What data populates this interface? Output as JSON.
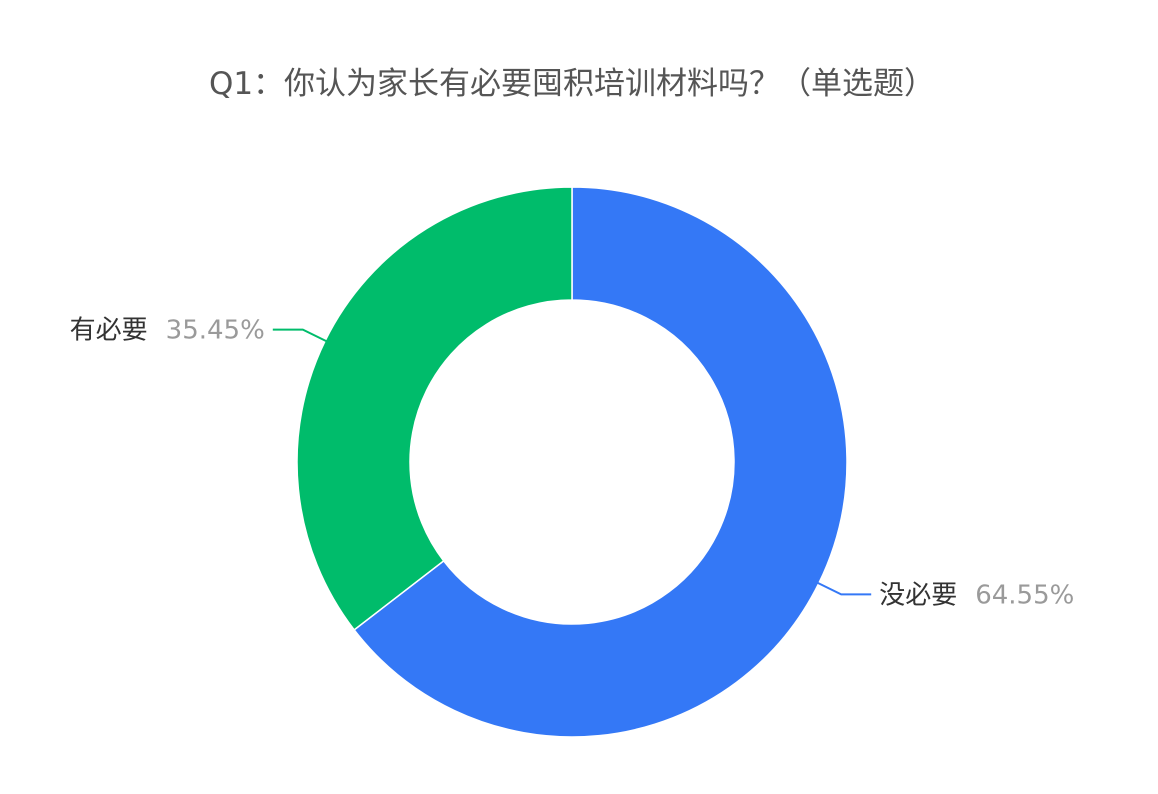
{
  "chart_data": {
    "type": "pie",
    "title": "Q1：你认为家长有必要囤积培训材料吗？（单选题）",
    "slices": [
      {
        "label": "没必要",
        "value": 64.55,
        "value_label": "64.55%",
        "color": "#3478f6"
      },
      {
        "label": "有必要",
        "value": 35.45,
        "value_label": "35.45%",
        "color": "#00bc6b"
      }
    ],
    "start_angle": "12 o'clock",
    "direction": "clockwise",
    "donut": true,
    "legend": "none",
    "label_style": "outside with leader lines"
  }
}
